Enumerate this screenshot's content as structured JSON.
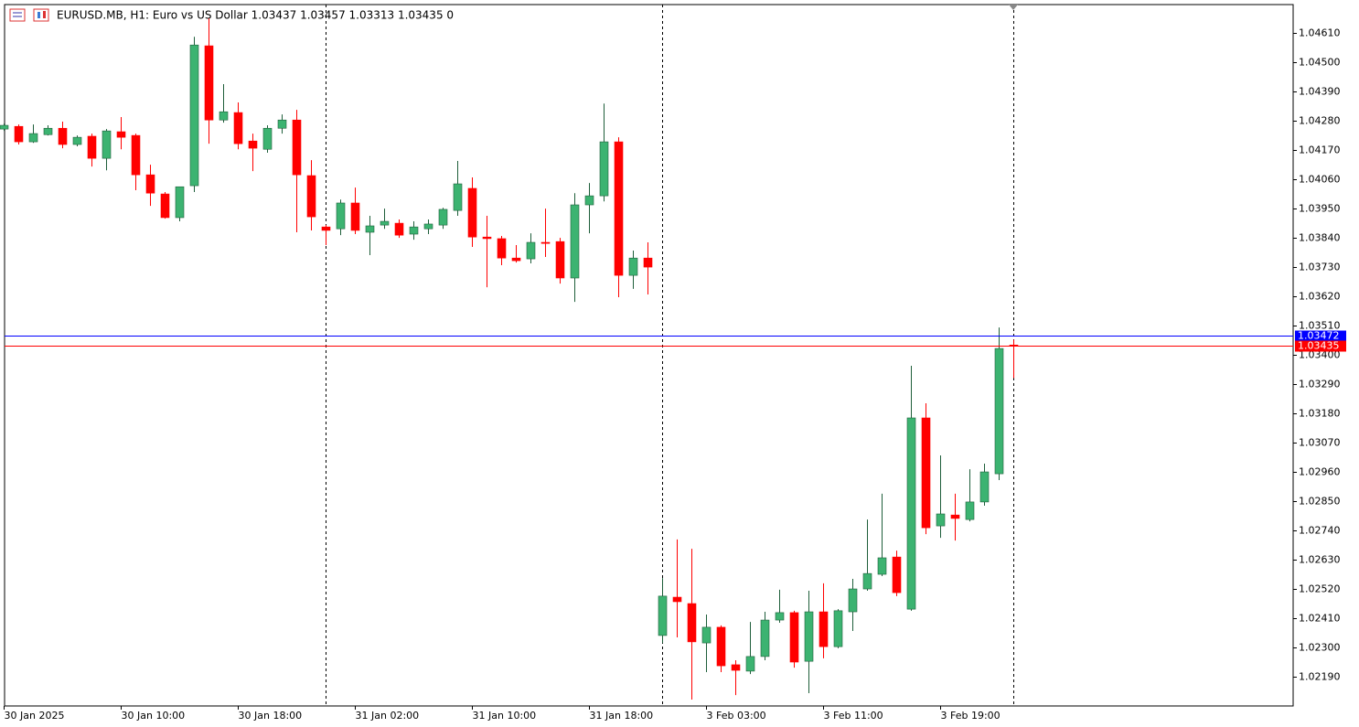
{
  "chart_data": {
    "type": "candlestick",
    "header": "EURUSD.MB, H1:  Euro vs US Dollar  1.03437 1.03457 1.03313 1.03435  0",
    "categories": [
      "30 Jan 2025",
      null,
      null,
      null,
      null,
      null,
      null,
      null,
      "30 Jan 10:00",
      null,
      null,
      null,
      null,
      null,
      null,
      null,
      "30 Jan 18:00",
      null,
      null,
      null,
      null,
      null,
      null,
      null,
      "31 Jan 02:00",
      null,
      null,
      null,
      null,
      null,
      null,
      null,
      "31 Jan 10:00",
      null,
      null,
      null,
      null,
      null,
      null,
      null,
      "31 Jan 18:00",
      null,
      null,
      null,
      null,
      null,
      null,
      null,
      "3 Feb 03:00",
      null,
      null,
      null,
      null,
      null,
      null,
      null,
      "3 Feb 11:00",
      null,
      null,
      null,
      null,
      null,
      null,
      null,
      "3 Feb 19:00",
      null,
      null,
      null,
      null,
      null
    ],
    "open": [
      1.04249,
      1.04259,
      1.04201,
      1.04228,
      1.04252,
      1.04191,
      1.04222,
      1.04139,
      1.04239,
      1.04225,
      1.04077,
      1.04005,
      1.03916,
      1.04036,
      1.04562,
      1.04283,
      1.04311,
      1.04204,
      1.04173,
      1.04252,
      1.04283,
      1.04074,
      1.03881,
      1.03874,
      1.03971,
      1.03861,
      1.03888,
      1.03895,
      1.03854,
      1.03874,
      1.03888,
      1.03943,
      1.04026,
      1.03843,
      1.03837,
      1.03764,
      1.03761,
      1.03823,
      1.03826,
      1.03689,
      1.03964,
      1.03998,
      1.04201,
      1.03699,
      1.03764,
      1.02345,
      1.02489,
      1.02465,
      1.02317,
      1.02376,
      1.02235,
      1.02211,
      1.02266,
      1.02403,
      1.02431,
      1.02248,
      1.02434,
      1.02303,
      1.02434,
      1.0252,
      1.02575,
      1.0264,
      1.02444,
      1.03163,
      1.02757,
      1.02798,
      1.02781,
      1.02847,
      1.02953,
      1.03437
    ],
    "high": [
      1.0427,
      1.04266,
      1.04266,
      1.04263,
      1.04277,
      1.04225,
      1.04232,
      1.04249,
      1.04294,
      1.04232,
      1.04115,
      1.04012,
      1.04032,
      1.04596,
      1.04665,
      1.04418,
      1.04349,
      1.04232,
      1.04263,
      1.04304,
      1.04321,
      1.04132,
      1.03888,
      1.03984,
      1.04029,
      1.03923,
      1.0395,
      1.03909,
      1.03902,
      1.03909,
      1.03953,
      1.04129,
      1.04067,
      1.03923,
      1.03847,
      1.03813,
      1.03857,
      1.0395,
      1.0384,
      1.04008,
      1.04046,
      1.04345,
      1.04218,
      1.03792,
      1.03823,
      1.02561,
      1.02706,
      1.02671,
      1.02424,
      1.02383,
      1.02252,
      1.02396,
      1.02434,
      1.02517,
      1.02438,
      1.02513,
      1.02541,
      1.02444,
      1.02558,
      1.02781,
      1.02878,
      1.02664,
      1.03359,
      1.03218,
      1.03022,
      1.02878,
      1.0297,
      1.02991,
      1.03503,
      1.03457
    ],
    "low": [
      1.04242,
      1.04191,
      1.04197,
      1.04225,
      1.04177,
      1.04184,
      1.04108,
      1.04094,
      1.04173,
      1.04019,
      1.0396,
      1.03912,
      1.03902,
      1.04012,
      1.04194,
      1.04273,
      1.04173,
      1.04091,
      1.0416,
      1.04232,
      1.03861,
      1.03868,
      1.03813,
      1.0385,
      1.03854,
      1.03775,
      1.03874,
      1.0384,
      1.03833,
      1.03854,
      1.03874,
      1.03923,
      1.03806,
      1.03654,
      1.03737,
      1.03747,
      1.03744,
      1.03768,
      1.03668,
      1.03599,
      1.03857,
      1.03977,
      1.03617,
      1.03648,
      1.03627,
      1.02317,
      1.02338,
      1.02104,
      1.02207,
      1.02207,
      1.02121,
      1.022,
      1.02252,
      1.02393,
      1.02224,
      1.02128,
      1.02259,
      1.02297,
      1.02362,
      1.02513,
      1.02568,
      1.02493,
      1.02438,
      1.02726,
      1.02712,
      1.02702,
      1.02774,
      1.02833,
      1.02929,
      1.03313
    ],
    "close": [
      1.04263,
      1.04201,
      1.04232,
      1.04252,
      1.04191,
      1.04218,
      1.04139,
      1.04242,
      1.04218,
      1.04077,
      1.04008,
      1.03916,
      1.04032,
      1.04565,
      1.04283,
      1.04314,
      1.04194,
      1.04177,
      1.04252,
      1.04283,
      1.04077,
      1.03919,
      1.03868,
      1.03971,
      1.03868,
      1.03885,
      1.03902,
      1.0385,
      1.03881,
      1.03892,
      1.03947,
      1.04043,
      1.03843,
      1.03837,
      1.03764,
      1.03754,
      1.03823,
      1.03819,
      1.03689,
      1.03964,
      1.03998,
      1.04201,
      1.03699,
      1.03764,
      1.0373,
      1.02493,
      1.02472,
      1.02321,
      1.02376,
      1.02231,
      1.02214,
      1.02266,
      1.02403,
      1.02431,
      1.02245,
      1.02434,
      1.02303,
      1.02438,
      1.0252,
      1.02578,
      1.02637,
      1.02506,
      1.03163,
      1.0275,
      1.02802,
      1.02785,
      1.02847,
      1.0296,
      1.03424,
      1.03435
    ],
    "up_color": "#3cb371",
    "down_color": "#ff0000",
    "ylim": [
      1.0208,
      1.04717
    ],
    "yticks": [
      {
        "value": 1.0461,
        "label": "1.04610"
      },
      {
        "value": 1.045,
        "label": "1.04500"
      },
      {
        "value": 1.0439,
        "label": "1.04390"
      },
      {
        "value": 1.0428,
        "label": "1.04280"
      },
      {
        "value": 1.0417,
        "label": "1.04170"
      },
      {
        "value": 1.0406,
        "label": "1.04060"
      },
      {
        "value": 1.0395,
        "label": "1.03950"
      },
      {
        "value": 1.0384,
        "label": "1.03840"
      },
      {
        "value": 1.0373,
        "label": "1.03730"
      },
      {
        "value": 1.0362,
        "label": "1.03620"
      },
      {
        "value": 1.0351,
        "label": "1.03510"
      },
      {
        "value": 1.034,
        "label": "1.03400"
      },
      {
        "value": 1.0329,
        "label": "1.03290"
      },
      {
        "value": 1.0318,
        "label": "1.03180"
      },
      {
        "value": 1.0307,
        "label": "1.03070"
      },
      {
        "value": 1.0296,
        "label": "1.02960"
      },
      {
        "value": 1.0285,
        "label": "1.02850"
      },
      {
        "value": 1.0274,
        "label": "1.02740"
      },
      {
        "value": 1.0263,
        "label": "1.02630"
      },
      {
        "value": 1.0252,
        "label": "1.02520"
      },
      {
        "value": 1.0241,
        "label": "1.02410"
      },
      {
        "value": 1.023,
        "label": "1.02300"
      },
      {
        "value": 1.0219,
        "label": "1.02190"
      }
    ],
    "price_lines": [
      {
        "value": 1.03472,
        "color": "#0000ff"
      },
      {
        "value": 1.03435,
        "color": "#ff0000"
      }
    ]
  }
}
